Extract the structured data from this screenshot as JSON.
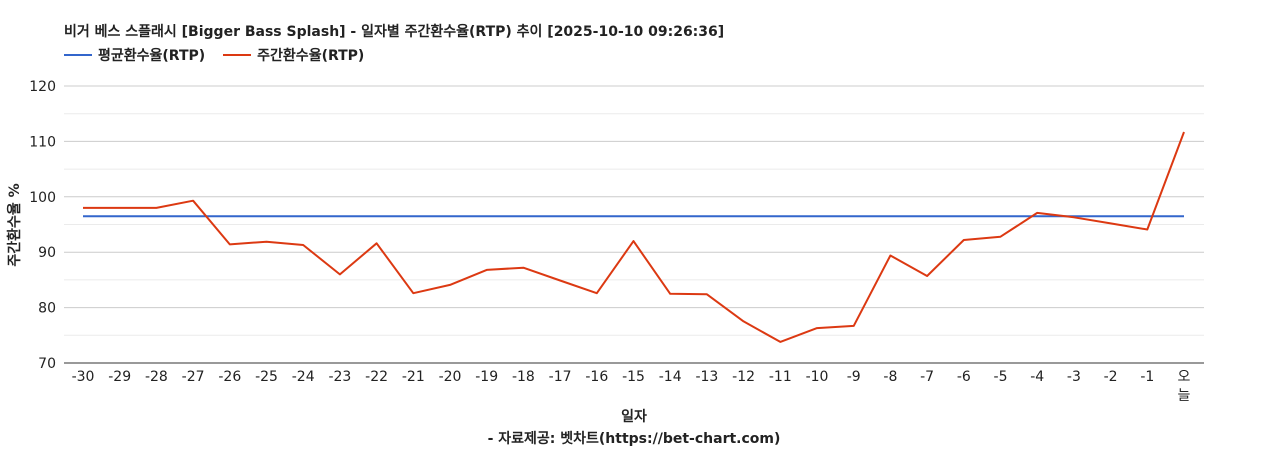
{
  "chart_data": {
    "type": "line",
    "title": "비거 베스 스플래시 [Bigger Bass Splash] - 일자별 주간환수율(RTP) 추이 [2025-10-10 09:26:36]",
    "xlabel": "일자",
    "ylabel": "주간환수율 %",
    "source": "- 자료제공: 벳차트(https://bet-chart.com)",
    "ylim": [
      70,
      120
    ],
    "yticks": [
      70,
      80,
      90,
      100,
      110,
      120
    ],
    "grid": true,
    "legend_position": "top-left",
    "categories": [
      "-30",
      "-29",
      "-28",
      "-27",
      "-26",
      "-25",
      "-24",
      "-23",
      "-22",
      "-21",
      "-20",
      "-19",
      "-18",
      "-17",
      "-16",
      "-15",
      "-14",
      "-13",
      "-12",
      "-11",
      "-10",
      "-9",
      "-8",
      "-7",
      "-6",
      "-5",
      "-4",
      "-3",
      "-2",
      "-1",
      "오\n늘"
    ],
    "series": [
      {
        "name": "평균환수율(RTP)",
        "color": "#3366cc",
        "values": [
          96.5,
          96.5,
          96.5,
          96.5,
          96.5,
          96.5,
          96.5,
          96.5,
          96.5,
          96.5,
          96.5,
          96.5,
          96.5,
          96.5,
          96.5,
          96.5,
          96.5,
          96.5,
          96.5,
          96.5,
          96.5,
          96.5,
          96.5,
          96.5,
          96.5,
          96.5,
          96.5,
          96.5,
          96.5,
          96.5,
          96.5
        ]
      },
      {
        "name": "주간환수율(RTP)",
        "color": "#dc3912",
        "values": [
          98.0,
          98.0,
          98.0,
          99.3,
          91.4,
          91.9,
          91.3,
          86.0,
          91.6,
          82.6,
          84.1,
          86.8,
          87.2,
          84.9,
          82.6,
          92.0,
          82.5,
          82.4,
          77.5,
          73.8,
          76.3,
          76.7,
          89.4,
          85.7,
          92.2,
          92.8,
          97.1,
          96.3,
          95.2,
          94.1,
          111.7
        ]
      }
    ]
  }
}
